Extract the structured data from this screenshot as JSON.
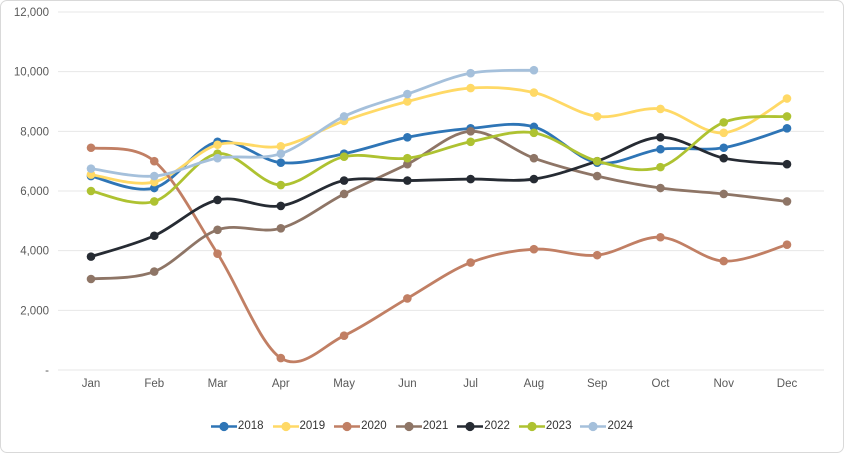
{
  "chart_data": {
    "type": "line",
    "title": "",
    "xlabel": "",
    "ylabel": "",
    "categories": [
      "Jan",
      "Feb",
      "Mar",
      "Apr",
      "May",
      "Jun",
      "Jul",
      "Aug",
      "Sep",
      "Oct",
      "Nov",
      "Dec"
    ],
    "series": [
      {
        "name": "2018",
        "color": "#2E75B6",
        "values": [
          6500,
          6100,
          7650,
          6950,
          7250,
          7800,
          8100,
          8150,
          6950,
          7400,
          7450,
          8100
        ]
      },
      {
        "name": "2019",
        "color": "#FFD966",
        "values": [
          6550,
          6300,
          7550,
          7500,
          8350,
          9000,
          9450,
          9300,
          8500,
          8750,
          7950,
          9100
        ]
      },
      {
        "name": "2020",
        "color": "#C17F64",
        "values": [
          7450,
          7000,
          3900,
          400,
          1150,
          2400,
          3600,
          4050,
          3850,
          4450,
          3650,
          4200
        ]
      },
      {
        "name": "2021",
        "color": "#8E7566",
        "values": [
          3050,
          3300,
          4700,
          4750,
          5900,
          6900,
          8000,
          7100,
          6500,
          6100,
          5900,
          5650
        ]
      },
      {
        "name": "2022",
        "color": "#262B33",
        "values": [
          3800,
          4500,
          5700,
          5500,
          6350,
          6350,
          6400,
          6400,
          7000,
          7800,
          7100,
          6900
        ]
      },
      {
        "name": "2023",
        "color": "#AEC231",
        "values": [
          6000,
          5650,
          7250,
          6200,
          7150,
          7100,
          7650,
          7950,
          7000,
          6800,
          8300,
          8500
        ]
      },
      {
        "name": "2024",
        "color": "#A5C0DB",
        "values": [
          6750,
          6500,
          7100,
          7250,
          8500,
          9250,
          9950,
          10050,
          null,
          null,
          null,
          null
        ]
      }
    ],
    "ylim": [
      0,
      12000
    ],
    "y_tick_step": 2000,
    "y_tick_labels": [
      "-",
      "2,000",
      "4,000",
      "6,000",
      "8,000",
      "10,000",
      "12,000"
    ],
    "grid": "horizontal",
    "legend_position": "bottom",
    "line_style": "smooth-with-markers"
  },
  "layout_hints": {
    "gridline_color": "#e7e7e7",
    "axis_text_color": "#595959",
    "card_border_color": "#d9d9d9"
  }
}
